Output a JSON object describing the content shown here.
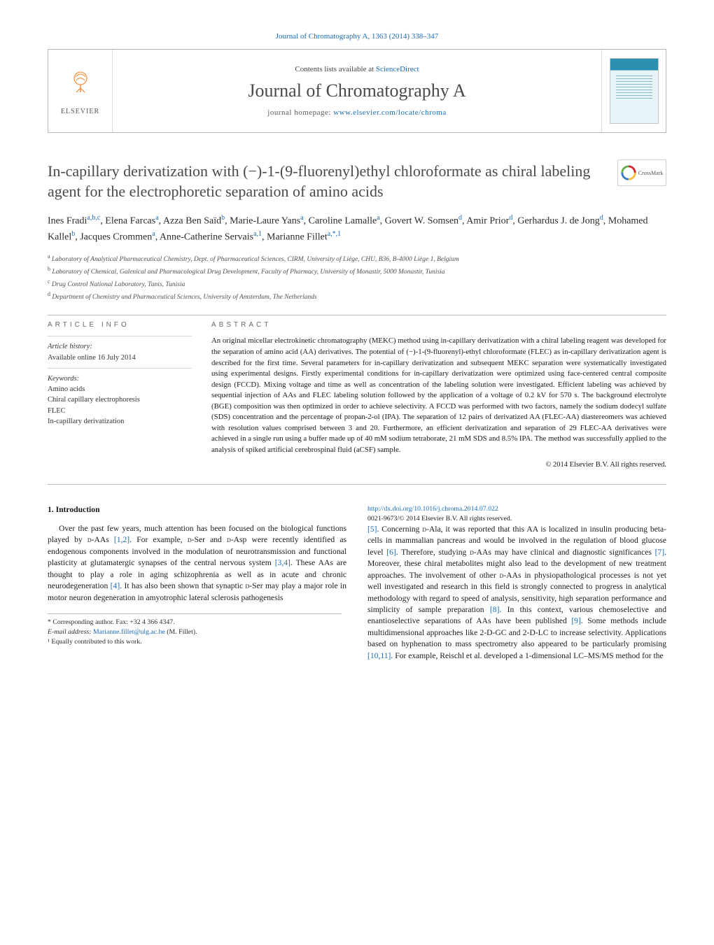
{
  "top_citation": "Journal of Chromatography A, 1363 (2014) 338–347",
  "header": {
    "publisher": "ELSEVIER",
    "avail_prefix": "Contents lists available at ",
    "avail_link": "ScienceDirect",
    "journal_title": "Journal of Chromatography A",
    "homepage_prefix": "journal homepage: ",
    "homepage_link": "www.elsevier.com/locate/chroma"
  },
  "crossmark_label": "CrossMark",
  "article_title": "In-capillary derivatization with (−)-1-(9-fluorenyl)ethyl chloroformate as chiral labeling agent for the electrophoretic separation of amino acids",
  "authors_html": "Ines Fradi<sup>a,b,c</sup>, Elena Farcas<sup>a</sup>, Azza Ben Saïd<sup>b</sup>, Marie-Laure Yans<sup>a</sup>, Caroline Lamalle<sup>a</sup>, Govert W. Somsen<sup>d</sup>, Amir Prior<sup>d</sup>, Gerhardus J. de Jong<sup>d</sup>, Mohamed Kallel<sup>b</sup>, Jacques Crommen<sup>a</sup>, Anne-Catherine Servais<sup>a,1</sup>, Marianne Fillet<sup>a,*,1</sup>",
  "affiliations": [
    {
      "sup": "a",
      "text": "Laboratory of Analytical Pharmaceutical Chemistry, Dept. of Pharmaceutical Sciences, CIRM, University of Liège, CHU, B36, B-4000 Liège 1, Belgium"
    },
    {
      "sup": "b",
      "text": "Laboratory of Chemical, Galenical and Pharmacological Drug Development, Faculty of Pharmacy, University of Monastir, 5000 Monastir, Tunisia"
    },
    {
      "sup": "c",
      "text": "Drug Control National Laboratory, Tunis, Tunisia"
    },
    {
      "sup": "d",
      "text": "Department of Chemistry and Pharmaceutical Sciences, University of Amsterdam, The Netherlands"
    }
  ],
  "info_head": "ARTICLE INFO",
  "abs_head": "ABSTRACT",
  "article_history_label": "Article history:",
  "article_history_value": "Available online 16 July 2014",
  "keywords_label": "Keywords:",
  "keywords": [
    "Amino acids",
    "Chiral capillary electrophoresis",
    "FLEC",
    "In-capillary derivatization"
  ],
  "abstract": "An original micellar electrokinetic chromatography (MEKC) method using in-capillary derivatization with a chiral labeling reagent was developed for the separation of amino acid (AA) derivatives. The potential of (−)-1-(9-fluorenyl)-ethyl chloroformate (FLEC) as in-capillary derivatization agent is described for the first time. Several parameters for in-capillary derivatization and subsequent MEKC separation were systematically investigated using experimental designs. Firstly experimental conditions for in-capillary derivatization were optimized using face-centered central composite design (FCCD). Mixing voltage and time as well as concentration of the labeling solution were investigated. Efficient labeling was achieved by sequential injection of AAs and FLEC labeling solution followed by the application of a voltage of 0.2 kV for 570 s. The background electrolyte (BGE) composition was then optimized in order to achieve selectivity. A FCCD was performed with two factors, namely the sodium dodecyl sulfate (SDS) concentration and the percentage of propan-2-ol (IPA). The separation of 12 pairs of derivatized AA (FLEC-AA) diastereomers was achieved with resolution values comprised between 3 and 20. Furthermore, an efficient derivatization and separation of 29 FLEC-AA derivatives were achieved in a single run using a buffer made up of 40 mM sodium tetraborate, 21 mM SDS and 8.5% IPA. The method was successfully applied to the analysis of spiked artificial cerebrospinal fluid (aCSF) sample.",
  "copyright": "© 2014 Elsevier B.V. All rights reserved.",
  "intro_heading": "1.  Introduction",
  "intro_col1": "Over the past few years, much attention has been focused on the biological functions played by <span class=\"sc\">d</span>-AAs <a class=\"ref\">[1,2]</a>. For example, <span class=\"sc\">d</span>-Ser and <span class=\"sc\">d</span>-Asp were recently identified as endogenous components involved in the modulation of neurotransmission and functional plasticity at glutamatergic synapses of the central nervous system <a class=\"ref\">[3,4]</a>. These AAs are thought to play a role in aging schizophrenia as well as in acute and chronic neurodegeneration <a class=\"ref\">[4]</a>. It has also been shown that synaptic <span class=\"sc\">d</span>-Ser may play a major role in motor neuron degeneration in amyotrophic lateral sclerosis pathogenesis",
  "intro_col2": "<a class=\"ref\">[5]</a>. Concerning <span class=\"sc\">d</span>-Ala, it was reported that this AA is localized in insulin producing beta-cells in mammalian pancreas and would be involved in the regulation of blood glucose level <a class=\"ref\">[6]</a>. Therefore, studying <span class=\"sc\">d</span>-AAs may have clinical and diagnostic significances <a class=\"ref\">[7]</a>. Moreover, these chiral metabolites might also lead to the development of new treatment approaches. The involvement of other <span class=\"sc\">d</span>-AAs in physiopathological processes is not yet well investigated and research in this field is strongly connected to progress in analytical methodology with regard to speed of analysis, sensitivity, high separation performance and simplicity of sample preparation <a class=\"ref\">[8]</a>. In this context, various chemoselective and enantioselective separations of AAs have been published <a class=\"ref\">[9]</a>. Some methods include multidimensional approaches like 2-D-GC and 2-D-LC to increase selectivity. Applications based on hyphenation to mass spectrometry also appeared to be particularly promising <a class=\"ref\">[10,11]</a>. For example, Reischl et al. developed a 1-dimensional LC–MS/MS method for the",
  "footnotes": {
    "corr": "* Corresponding author. Fax: +32 4 366 4347.",
    "email_label": "E-mail address:",
    "email": "Marianne.fillet@ulg.ac.be",
    "email_suffix": " (M. Fillet).",
    "equal": "¹ Equally contributed to this work."
  },
  "doi": {
    "link": "http://dx.doi.org/10.1016/j.chroma.2014.07.022",
    "line2": "0021-9673/© 2014 Elsevier B.V. All rights reserved."
  },
  "colors": {
    "link": "#1a6bb8",
    "orange": "#f58220",
    "rule": "#bababa",
    "text": "#1a1a1a",
    "muted": "#4a4a4a"
  }
}
